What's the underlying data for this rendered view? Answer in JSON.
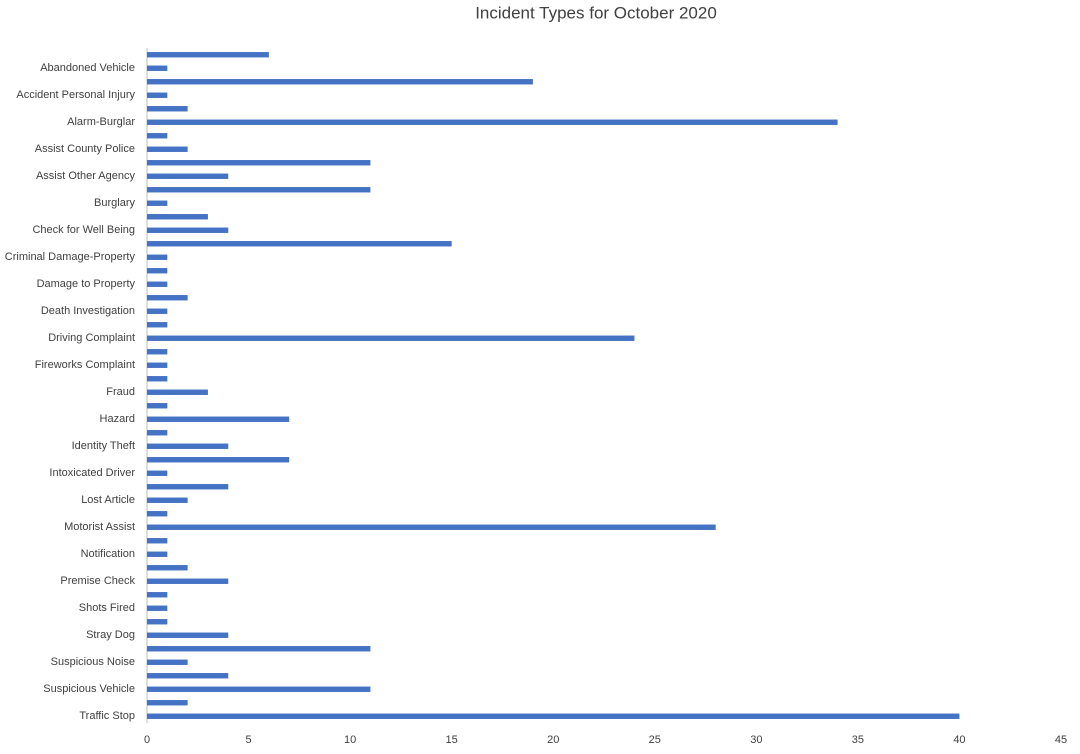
{
  "chart_data": {
    "type": "barh",
    "title": "Incident Types for October 2020",
    "categories": [
      null,
      "Abandoned Vehicle",
      null,
      "Accident Personal Injury",
      null,
      "Alarm-Burglar",
      null,
      "Assist County Police",
      null,
      "Assist Other Agency",
      null,
      "Burglary",
      null,
      "Check for Well Being",
      null,
      "Criminal Damage-Property",
      null,
      "Damage to Property",
      null,
      "Death Investigation",
      null,
      "Driving Complaint",
      null,
      "Fireworks Complaint",
      null,
      "Fraud",
      null,
      "Hazard",
      null,
      "Identity Theft",
      null,
      "Intoxicated Driver",
      null,
      "Lost Article",
      null,
      "Motorist Assist",
      null,
      "Notification",
      null,
      "Premise Check",
      null,
      "Shots Fired",
      null,
      "Stray Dog",
      null,
      "Suspicious Noise",
      null,
      "Suspicious Vehicle",
      null,
      "Traffic Stop"
    ],
    "values": [
      6,
      1,
      19,
      1,
      2,
      34,
      1,
      2,
      11,
      4,
      11,
      1,
      3,
      4,
      15,
      1,
      1,
      1,
      2,
      1,
      1,
      24,
      1,
      1,
      1,
      3,
      1,
      7,
      1,
      4,
      7,
      1,
      4,
      2,
      1,
      28,
      1,
      1,
      2,
      4,
      1,
      1,
      1,
      4,
      11,
      2,
      4,
      11,
      2,
      40
    ],
    "color": "#4472c4",
    "xlim": [
      0,
      45
    ],
    "xticks": [
      0,
      5,
      10,
      15,
      20,
      25,
      30,
      35,
      40,
      45
    ],
    "grid": false
  }
}
